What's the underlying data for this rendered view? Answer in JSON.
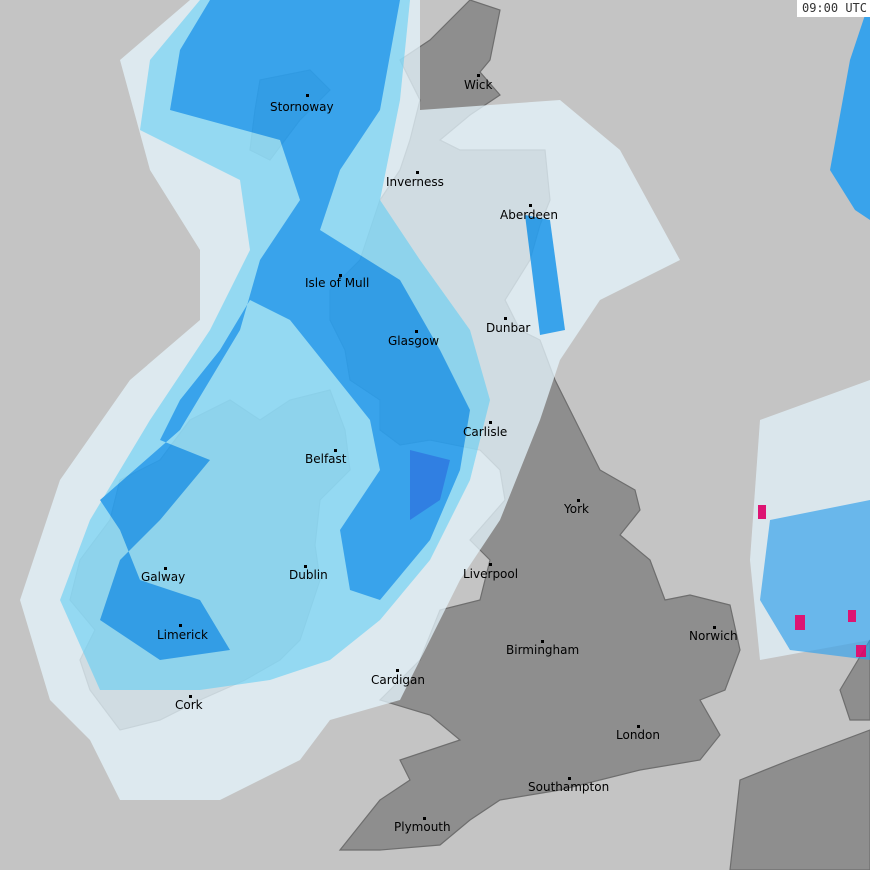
{
  "timestamp": "09:00 UTC",
  "colors": {
    "sea": "#c4c4c4",
    "land": "#8e8e8e",
    "light_precip": "#e4f4fc",
    "moderate_precip": "#8fdcf8",
    "heavy_precip": "#2aa0f0",
    "very_heavy_precip": "#1a5ee0",
    "extreme_precip": "#e0006a"
  },
  "cities": [
    {
      "name": "Wick",
      "dot": [
        478,
        75
      ],
      "label": [
        464,
        78
      ]
    },
    {
      "name": "Stornoway",
      "dot": [
        307,
        95
      ],
      "label": [
        270,
        100
      ]
    },
    {
      "name": "Inverness",
      "dot": [
        417,
        172
      ],
      "label": [
        386,
        175
      ]
    },
    {
      "name": "Aberdeen",
      "dot": [
        530,
        205
      ],
      "label": [
        500,
        208
      ]
    },
    {
      "name": "Isle of Mull",
      "dot": [
        340,
        275
      ],
      "label": [
        305,
        276
      ]
    },
    {
      "name": "Dunbar",
      "dot": [
        505,
        318
      ],
      "label": [
        486,
        321
      ]
    },
    {
      "name": "Glasgow",
      "dot": [
        416,
        331
      ],
      "label": [
        388,
        334
      ]
    },
    {
      "name": "Carlisle",
      "dot": [
        490,
        422
      ],
      "label": [
        463,
        425
      ]
    },
    {
      "name": "Belfast",
      "dot": [
        335,
        450
      ],
      "label": [
        305,
        452
      ]
    },
    {
      "name": "York",
      "dot": [
        578,
        500
      ],
      "label": [
        564,
        502
      ]
    },
    {
      "name": "Galway",
      "dot": [
        165,
        568
      ],
      "label": [
        141,
        570
      ]
    },
    {
      "name": "Dublin",
      "dot": [
        305,
        566
      ],
      "label": [
        289,
        568
      ]
    },
    {
      "name": "Liverpool",
      "dot": [
        490,
        564
      ],
      "label": [
        463,
        567
      ]
    },
    {
      "name": "Limerick",
      "dot": [
        180,
        625
      ],
      "label": [
        157,
        628
      ]
    },
    {
      "name": "Norwich",
      "dot": [
        714,
        627
      ],
      "label": [
        689,
        629
      ]
    },
    {
      "name": "Birmingham",
      "dot": [
        542,
        641
      ],
      "label": [
        506,
        643
      ]
    },
    {
      "name": "Cardigan",
      "dot": [
        397,
        670
      ],
      "label": [
        371,
        673
      ]
    },
    {
      "name": "Cork",
      "dot": [
        190,
        696
      ],
      "label": [
        175,
        698
      ]
    },
    {
      "name": "London",
      "dot": [
        638,
        726
      ],
      "label": [
        616,
        728
      ]
    },
    {
      "name": "Southampton",
      "dot": [
        569,
        778
      ],
      "label": [
        528,
        780
      ]
    },
    {
      "name": "Plymouth",
      "dot": [
        424,
        818
      ],
      "label": [
        394,
        820
      ]
    }
  ]
}
